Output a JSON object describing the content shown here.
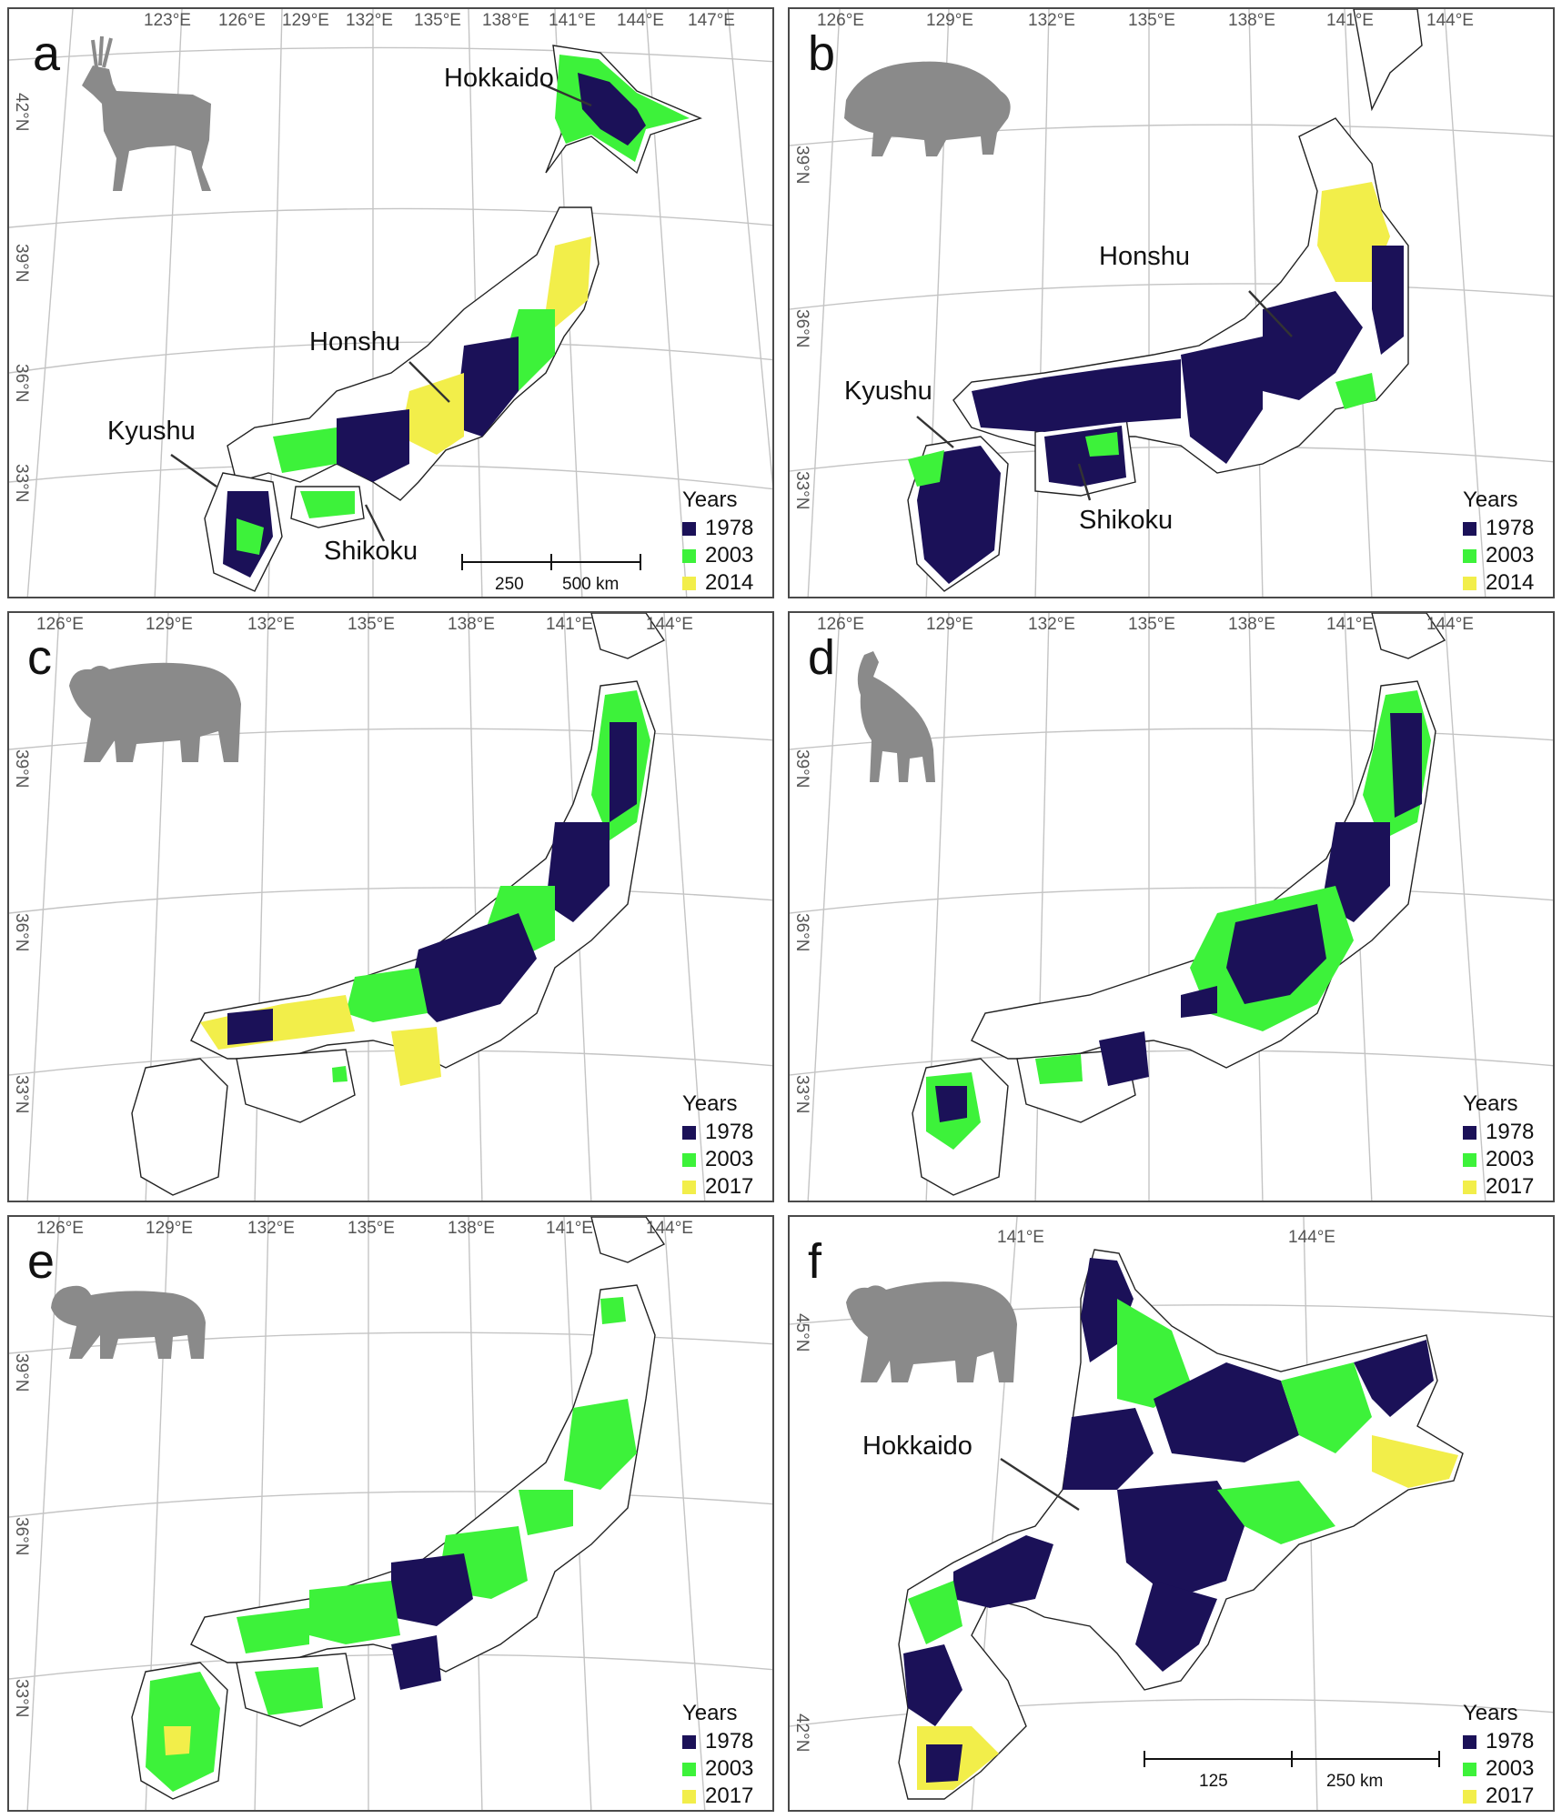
{
  "colors": {
    "y1978": "#1b1158",
    "y2003": "#3df23a",
    "y2014": "#f2ee4a",
    "silhouette": "#8a8a8a"
  },
  "panels": {
    "a": {
      "letter": "a",
      "animal_icon": "sika-deer-icon",
      "lon_ticks": [
        "123°E",
        "126°E",
        "129°E",
        "132°E",
        "135°E",
        "138°E",
        "141°E",
        "144°E",
        "147°E"
      ],
      "lat_ticks": [
        "42°N",
        "39°N",
        "36°N",
        "33°N"
      ],
      "labels": {
        "hokkaido": "Hokkaido",
        "honshu": "Honshu",
        "kyushu": "Kyushu",
        "shikoku": "Shikoku"
      },
      "legend": {
        "title": "Years",
        "items": [
          "1978",
          "2003",
          "2014"
        ]
      },
      "scale": {
        "mid": "250",
        "end": "500 km"
      }
    },
    "b": {
      "letter": "b",
      "animal_icon": "wild-boar-icon",
      "lon_ticks": [
        "126°E",
        "129°E",
        "132°E",
        "135°E",
        "138°E",
        "141°E",
        "144°E"
      ],
      "lat_ticks": [
        "39°N",
        "36°N",
        "33°N"
      ],
      "labels": {
        "honshu": "Honshu",
        "kyushu": "Kyushu",
        "shikoku": "Shikoku"
      },
      "legend": {
        "title": "Years",
        "items": [
          "1978",
          "2003",
          "2014"
        ]
      }
    },
    "c": {
      "letter": "c",
      "animal_icon": "black-bear-icon",
      "lon_ticks": [
        "126°E",
        "129°E",
        "132°E",
        "135°E",
        "138°E",
        "141°E",
        "144°E"
      ],
      "lat_ticks": [
        "39°N",
        "36°N",
        "33°N"
      ],
      "legend": {
        "title": "Years",
        "items": [
          "1978",
          "2003",
          "2017"
        ]
      }
    },
    "d": {
      "letter": "d",
      "animal_icon": "serow-icon",
      "lon_ticks": [
        "126°E",
        "129°E",
        "132°E",
        "135°E",
        "138°E",
        "141°E",
        "144°E"
      ],
      "lat_ticks": [
        "39°N",
        "36°N",
        "33°N"
      ],
      "legend": {
        "title": "Years",
        "items": [
          "1978",
          "2003",
          "2017"
        ]
      }
    },
    "e": {
      "letter": "e",
      "animal_icon": "macaque-icon",
      "lon_ticks": [
        "126°E",
        "129°E",
        "132°E",
        "135°E",
        "138°E",
        "141°E",
        "144°E"
      ],
      "lat_ticks": [
        "39°N",
        "36°N",
        "33°N"
      ],
      "legend": {
        "title": "Years",
        "items": [
          "1978",
          "2003",
          "2017"
        ]
      }
    },
    "f": {
      "letter": "f",
      "animal_icon": "brown-bear-icon",
      "lon_ticks": [
        "141°E",
        "144°E"
      ],
      "lat_ticks": [
        "45°N",
        "42°N"
      ],
      "labels": {
        "hokkaido": "Hokkaido"
      },
      "legend": {
        "title": "Years",
        "items": [
          "1978",
          "2003",
          "2017"
        ]
      },
      "scale": {
        "mid": "125",
        "end": "250 km"
      }
    }
  }
}
